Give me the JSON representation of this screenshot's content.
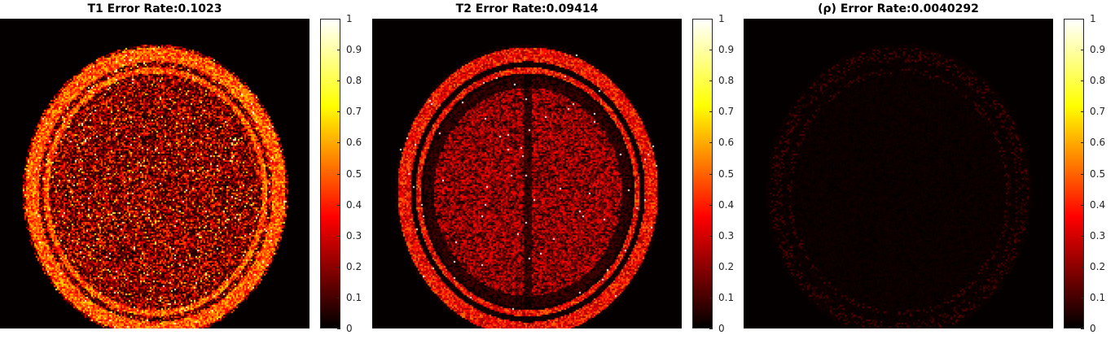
{
  "panels": [
    {
      "title": "T1 Error Rate:0.1023",
      "error_rate": 0.1023,
      "intensity": 0.55,
      "pattern": "t1"
    },
    {
      "title": "T2 Error Rate:0.09414",
      "error_rate": 0.09414,
      "intensity": 0.4,
      "pattern": "t2"
    },
    {
      "title": "(ρ) Error Rate:0.0040292",
      "error_rate": 0.0040292,
      "intensity": 0.03,
      "pattern": "rho"
    }
  ],
  "colorbar": {
    "colormap": "hot",
    "ticks": [
      "0",
      "0.1",
      "0.2",
      "0.3",
      "0.4",
      "0.5",
      "0.6",
      "0.7",
      "0.8",
      "0.9",
      "1"
    ],
    "range": [
      0,
      1
    ]
  }
}
